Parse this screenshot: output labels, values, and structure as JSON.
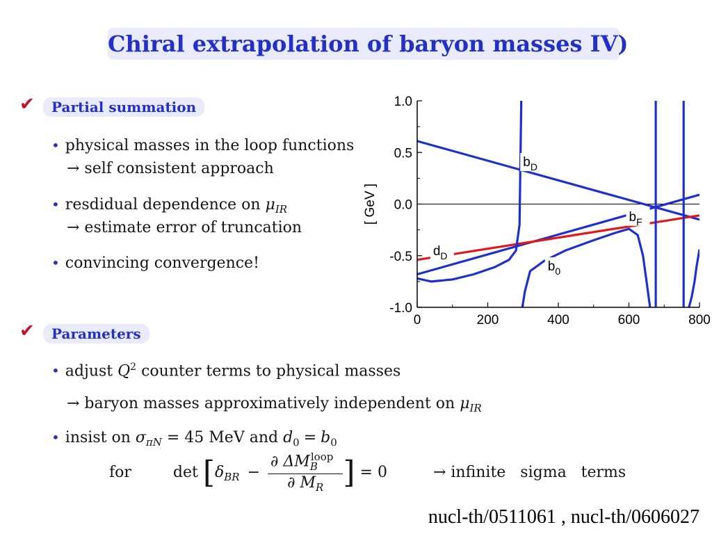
{
  "slide": {
    "title": "Chiral extrapolation of baryon masses IV)",
    "check_symbol": "✔",
    "bullet_symbol": "•",
    "reference": "nucl-th/0511061 , nucl-th/0606027"
  },
  "section1": {
    "heading": "Partial summation",
    "b1_line1": "physical masses in the loop functions",
    "b1_line2": "→ self consistent approach",
    "b2_line1_text": "resdidual dependence on ",
    "b2_line2": "→ estimate error of truncation",
    "b3": "convincing convergence!"
  },
  "section2": {
    "heading": "Parameters",
    "b1_pre": "adjust ",
    "b1_post": " counter terms to physical masses",
    "b1_line2_text": "→ baryon masses approximatively independent on ",
    "b2_pre": "insist on ",
    "b2_eq1": " = 45 MeV and ",
    "for_label": "for",
    "det_label": "det",
    "eq_zero": "= 0",
    "result": "→ infinite   sigma   terms"
  },
  "math": {
    "mu": "μ",
    "ir": "IR",
    "Q": "Q",
    "two": "2",
    "sigma": "σ",
    "piN": "πN",
    "d": "d",
    "b": "b",
    "zero": "0",
    "delta": "δ",
    "BR": "BR",
    "minus": "−",
    "partial_DeltaM": "∂ ΔM",
    "B": "B",
    "loop": "loop",
    "partial_M": "∂ M",
    "R": "R"
  },
  "chart_data": {
    "type": "line",
    "title": "",
    "xlabel": "",
    "ylabel": "[ GeV ]",
    "xlim": [
      0,
      800
    ],
    "ylim": [
      -1.0,
      1.0
    ],
    "x_ticks": [
      "0",
      "200",
      "400",
      "600",
      "800"
    ],
    "y_ticks": [
      "1.0",
      "0.5",
      "0.0",
      "-0.5",
      "-1.0"
    ],
    "y_tick_values": [
      1.0,
      0.5,
      0.0,
      -0.5,
      -1.0
    ],
    "x_tick_values": [
      0,
      200,
      400,
      600,
      800
    ],
    "colors": {
      "blue": "#1e2fd2",
      "red": "#e01818",
      "axis": "#000000"
    },
    "series": [
      {
        "name": "b_D",
        "color": "#1e2fd2",
        "x": [
          0,
          800
        ],
        "y": [
          0.61,
          -0.15
        ]
      },
      {
        "name": "b_F",
        "color": "#1e2fd2",
        "x": [
          0,
          800
        ],
        "y": [
          -0.68,
          0.09
        ]
      },
      {
        "name": "d_D",
        "color": "#e01818",
        "x": [
          0,
          800
        ],
        "y": [
          -0.54,
          -0.11
        ]
      },
      {
        "name": "b_0",
        "color": "#1e2fd2",
        "x": [
          0,
          40,
          100,
          160,
          220,
          260,
          280,
          290,
          295
        ],
        "y": [
          -0.72,
          -0.75,
          -0.73,
          -0.68,
          -0.61,
          -0.54,
          -0.45,
          -0.2,
          1.0
        ]
      },
      {
        "name": "b_0",
        "color": "#1e2fd2",
        "x": [
          298,
          305,
          320,
          360,
          420,
          500,
          560,
          600,
          625,
          640,
          652,
          660
        ],
        "y": [
          -1.0,
          -0.85,
          -0.65,
          -0.55,
          -0.45,
          -0.35,
          -0.28,
          -0.24,
          -0.3,
          -0.5,
          -0.8,
          -1.0
        ]
      },
      {
        "name": "b_0",
        "color": "#1e2fd2",
        "x": [
          676,
          676
        ],
        "y": [
          -1.0,
          1.0
        ]
      },
      {
        "name": "b_0",
        "color": "#1e2fd2",
        "x": [
          755,
          755
        ],
        "y": [
          -1.0,
          1.0
        ]
      },
      {
        "name": "b_0",
        "color": "#1e2fd2",
        "x": [
          770,
          778,
          786,
          792,
          797,
          800
        ],
        "y": [
          -1.0,
          -0.9,
          -0.75,
          -0.6,
          -0.5,
          -0.44
        ]
      }
    ],
    "labels": [
      {
        "base": "b",
        "sub": "D",
        "x": 300,
        "y": 0.38
      },
      {
        "base": "b",
        "sub": "F",
        "x": 600,
        "y": -0.15
      },
      {
        "base": "d",
        "sub": "D",
        "x": 45,
        "y": -0.48
      },
      {
        "base": "b",
        "sub": "0",
        "x": 370,
        "y": -0.63
      }
    ]
  }
}
